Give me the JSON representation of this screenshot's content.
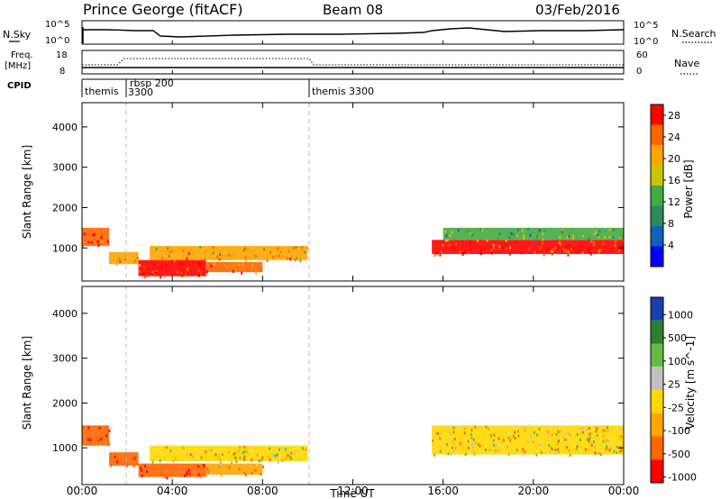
{
  "header": {
    "station": "Prince George (fitACF)",
    "beam": "Beam 08",
    "date": "03/Feb/2016"
  },
  "panels": {
    "nsky": {
      "left_label": "N.Sky",
      "left_tick_top": "10^5",
      "left_tick_bottom": "10^0",
      "right_tick_top": "10^5",
      "right_tick_bottom": "10^0",
      "right_label": "N.Search"
    },
    "freq": {
      "left_label_1": "Freq.",
      "left_label_2": "[MHz]",
      "left_tick_top": "18",
      "left_tick_bottom": "8",
      "right_tick_top": "60",
      "right_tick_bottom": "0",
      "right_label": "Nave"
    },
    "cpid": {
      "label": "CPID",
      "modes": [
        {
          "name": "themis",
          "start_hour": 0.0
        },
        {
          "name": "rbsp 200",
          "start_hour": 1.8,
          "sub": "3300"
        },
        {
          "name": "themis 3300",
          "start_hour": 10.0
        }
      ]
    }
  },
  "chart_data": [
    {
      "type": "heatmap",
      "title": "",
      "ylabel": "Slant Range [km]",
      "xlabel": "Time UT",
      "x_ticks": [
        "00:00",
        "04:00",
        "08:00",
        "12:00",
        "16:00",
        "20:00",
        "00:00"
      ],
      "xlim_hours": [
        0,
        24
      ],
      "y_ticks": [
        1000,
        2000,
        3000,
        4000
      ],
      "ylim": [
        180,
        4600
      ],
      "colorbar": {
        "label": "Power [dB]",
        "ticks": [
          4,
          8,
          12,
          16,
          20,
          24,
          28
        ],
        "range": [
          0,
          30
        ],
        "colors": [
          "#0000ff",
          "#1060c0",
          "#2e8b57",
          "#44aa44",
          "#c8c800",
          "#ffa500",
          "#ff6600",
          "#ff0000"
        ]
      },
      "echo_regions": [
        {
          "t0": 0.0,
          "t1": 1.2,
          "r0": 1050,
          "r1": 1500,
          "level": 26
        },
        {
          "t0": 1.2,
          "t1": 2.5,
          "r0": 600,
          "r1": 900,
          "level": 22
        },
        {
          "t0": 2.5,
          "t1": 5.5,
          "r0": 300,
          "r1": 700,
          "level": 28
        },
        {
          "t0": 3.0,
          "t1": 10.0,
          "r0": 700,
          "r1": 1050,
          "level": 20
        },
        {
          "t0": 5.5,
          "t1": 8.0,
          "r0": 400,
          "r1": 650,
          "level": 24
        },
        {
          "t0": 15.5,
          "t1": 24.0,
          "r0": 850,
          "r1": 1200,
          "level": 27
        },
        {
          "t0": 16.0,
          "t1": 24.0,
          "r0": 1200,
          "r1": 1500,
          "level": 14
        }
      ]
    },
    {
      "type": "heatmap",
      "title": "",
      "ylabel": "Slant Range [km]",
      "xlabel": "Time UT",
      "x_ticks": [
        "00:00",
        "04:00",
        "08:00",
        "12:00",
        "16:00",
        "20:00",
        "00:00"
      ],
      "xlim_hours": [
        0,
        24
      ],
      "y_ticks": [
        1000,
        2000,
        3000,
        4000
      ],
      "ylim": [
        180,
        4600
      ],
      "colorbar": {
        "label": "Velocity [m s^-1]",
        "ticks": [
          1000,
          500,
          100,
          25,
          -25,
          -100,
          -500,
          -1000
        ],
        "colors": [
          "#1a3fb0",
          "#2e7d32",
          "#66bb44",
          "#c0c0c0",
          "#ffd700",
          "#ffa500",
          "#ff6600",
          "#ff0000"
        ]
      },
      "echo_regions": [
        {
          "t0": 0.0,
          "t1": 1.2,
          "r0": 1050,
          "r1": 1500,
          "velocity": -500
        },
        {
          "t0": 1.2,
          "t1": 2.5,
          "r0": 600,
          "r1": 900,
          "velocity": -500
        },
        {
          "t0": 2.5,
          "t1": 5.5,
          "r0": 350,
          "r1": 650,
          "velocity": -500
        },
        {
          "t0": 3.0,
          "t1": 10.0,
          "r0": 700,
          "r1": 1050,
          "velocity": 0
        },
        {
          "t0": 5.5,
          "t1": 8.0,
          "r0": 400,
          "r1": 650,
          "velocity": -100
        },
        {
          "t0": 15.5,
          "t1": 24.0,
          "r0": 850,
          "r1": 1500,
          "velocity": 0
        }
      ]
    }
  ]
}
